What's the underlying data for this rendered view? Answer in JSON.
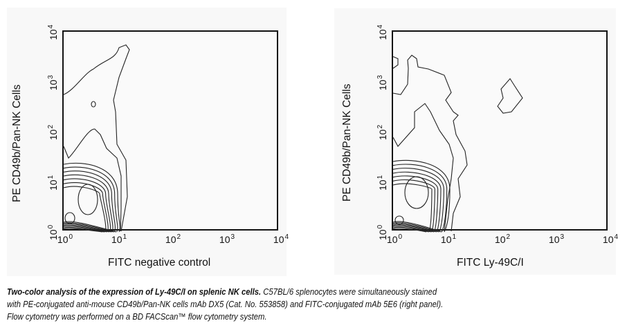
{
  "chart_data": [
    {
      "type": "contour",
      "panel": "left",
      "xlabel": "FITC negative control",
      "ylabel": "PE CD49b/Pan-NK Cells",
      "xscale": "log",
      "yscale": "log",
      "xlim": [
        1,
        10000
      ],
      "ylim": [
        1,
        10000
      ],
      "tick_base": "10",
      "tick_exponents": [
        "0",
        "1",
        "2",
        "3",
        "4"
      ],
      "populations": [
        {
          "name": "main cluster",
          "x": 3,
          "y": 4
        },
        {
          "name": "low cluster",
          "x": 1.3,
          "y": 1.5
        }
      ]
    },
    {
      "type": "contour",
      "panel": "right",
      "xlabel": "FITC Ly-49C/I",
      "ylabel": "PE CD49b/Pan-NK Cells",
      "xscale": "log",
      "yscale": "log",
      "xlim": [
        1,
        10000
      ],
      "ylim": [
        1,
        10000
      ],
      "tick_base": "10",
      "tick_exponents": [
        "0",
        "1",
        "2",
        "3",
        "4"
      ],
      "populations": [
        {
          "name": "main cluster",
          "x": 2.7,
          "y": 5
        },
        {
          "name": "low cluster",
          "x": 1.2,
          "y": 1.5
        },
        {
          "name": "Ly-49C/I+ island",
          "x": 150,
          "y": 600
        }
      ]
    }
  ],
  "caption": {
    "bold": "Two-color analysis of the expression of Ly-49C/I on splenic NK cells.",
    "line1": " C57BL/6 splenocytes were simultaneously stained",
    "line2": "with PE-conjugated anti-mouse CD49b/Pan-NK cells mAb DX5 (Cat. No. 553858) and FITC-conjugated mAb 5E6 (right panel).",
    "line3": "Flow cytometry was performed on a BD FACScan™ flow cytometry system."
  }
}
